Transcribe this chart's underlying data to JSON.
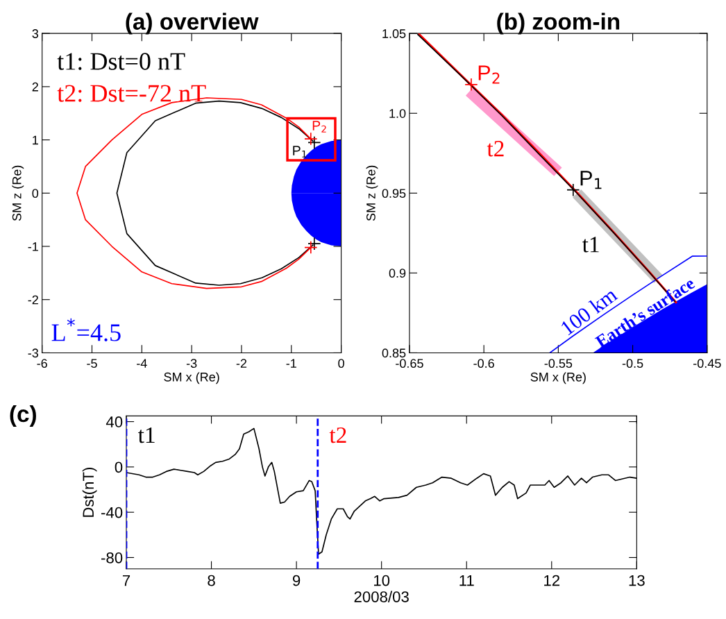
{
  "chart_data": [
    {
      "type": "line",
      "title": "(a) overview",
      "xlabel": "SM x (Re)",
      "ylabel": "SM z (Re)",
      "xlim": [
        -6,
        0
      ],
      "ylim": [
        -3,
        3
      ],
      "xticks": [
        -6,
        -5,
        -4,
        -3,
        -2,
        -1,
        0
      ],
      "yticks": [
        -3,
        -2,
        -1,
        0,
        1,
        2,
        3
      ],
      "grid": false,
      "legend": false,
      "annotations": [
        "t1: Dst=0 nT",
        "t2: Dst=-72 nT",
        {
          "text": "P$_{1}$",
          "x": -0.54,
          "y": 0.95
        },
        {
          "text": "P$_{2}$",
          "x": -0.61,
          "y": 1.02
        },
        "L$^{*}$=4.5"
      ],
      "series": [
        {
          "type": "area",
          "color": "#0000ff",
          "x": [
            -1,
            -0.99,
            -0.95,
            -0.9,
            -0.8,
            -0.7,
            -0.6,
            -0.5,
            -0.4,
            -0.3,
            -0.2,
            -0.1,
            0
          ],
          "values": [
            0,
            0.14,
            0.31,
            0.44,
            0.6,
            0.71,
            0.8,
            0.87,
            0.92,
            0.95,
            0.98,
            0.99,
            1
          ]
        },
        {
          "type": "area",
          "color": "#0000ff",
          "x": [
            -1,
            -0.99,
            -0.95,
            -0.9,
            -0.8,
            -0.7,
            -0.6,
            -0.5,
            -0.4,
            -0.3,
            -0.2,
            -0.1,
            0
          ],
          "values": [
            0,
            -0.14,
            -0.31,
            -0.44,
            -0.6,
            -0.71,
            -0.8,
            -0.87,
            -0.92,
            -0.95,
            -0.98,
            -0.99,
            -1
          ]
        },
        {
          "color": "#000000",
          "x": [
            -0.56,
            -0.85,
            -1.2,
            -1.59,
            -2.02,
            -2.45,
            -2.92,
            -3.73,
            -4.3,
            -4.5,
            -4.3,
            -3.73,
            -2.92,
            -2.45,
            -2.02,
            -1.59,
            -1.2,
            -0.85,
            -0.56
          ],
          "values": [
            0.97,
            1.21,
            1.42,
            1.59,
            1.7,
            1.73,
            1.69,
            1.36,
            0.76,
            0,
            -0.76,
            -1.36,
            -1.69,
            -1.73,
            -1.7,
            -1.59,
            -1.42,
            -1.21,
            -0.97
          ]
        },
        {
          "color": "#ff0000",
          "x": [
            -0.61,
            -0.85,
            -1.1,
            -1.6,
            -2.0,
            -2.7,
            -3.4,
            -4.0,
            -4.6,
            -5.13,
            -5.3,
            -5.13,
            -4.6,
            -4.0,
            -3.4,
            -2.7,
            -2.0,
            -1.6,
            -1.1,
            -0.85,
            -0.61
          ],
          "values": [
            1.02,
            1.24,
            1.41,
            1.66,
            1.76,
            1.79,
            1.7,
            1.48,
            1.0,
            0.5,
            0,
            -0.5,
            -1.0,
            -1.48,
            -1.7,
            -1.79,
            -1.76,
            -1.66,
            -1.41,
            -1.24,
            -1.02
          ]
        },
        {
          "type": "scatter",
          "marker": "cross",
          "color": "#000000",
          "x": [
            -0.54,
            -0.54
          ],
          "values": [
            0.95,
            -0.95
          ]
        },
        {
          "type": "scatter",
          "marker": "cross",
          "color": "#ff0000",
          "x": [
            -0.61,
            -0.61
          ],
          "values": [
            1.02,
            -1.02
          ]
        }
      ]
    },
    {
      "type": "line",
      "title": "(b) zoom-in",
      "xlabel": "SM x (Re)",
      "ylabel": "SM z (Re)",
      "xlim": [
        -0.65,
        -0.45
      ],
      "ylim": [
        0.85,
        1.05
      ],
      "xticks": [
        -0.65,
        -0.6,
        -0.55,
        -0.5,
        -0.45
      ],
      "yticks": [
        0.85,
        0.9,
        0.95,
        {
          "value": 1.0,
          "label": "1.0"
        },
        1.05
      ],
      "grid": false,
      "legend": false,
      "annotations": [
        {
          "text": "P$_{2}$",
          "x": -0.6085,
          "y": 1.018
        },
        {
          "text": "P$_{1}$",
          "x": -0.54,
          "y": 0.952
        },
        "t2",
        "t1",
        "100 km",
        "Earth’s surface"
      ],
      "series": [
        {
          "color": "#ff99cc",
          "x": [
            -0.6096,
            -0.5502
          ],
          "values": [
            1.0138,
            0.9633
          ]
        },
        {
          "color": "#c0c0c0",
          "x": [
            -0.5375,
            -0.4828
          ],
          "values": [
            0.9498,
            0.8963
          ]
        },
        {
          "type": "area",
          "color": "#0000ff",
          "x": [
            -0.5268,
            -0.52,
            -0.51,
            -0.5,
            -0.49,
            -0.48,
            -0.47,
            -0.46,
            -0.45
          ],
          "values": [
            0.85,
            0.8542,
            0.8602,
            0.866,
            0.8717,
            0.8773,
            0.8827,
            0.8879,
            0.893
          ]
        },
        {
          "color": "#0000ff",
          "x": [
            -0.5557,
            -0.54,
            -0.52,
            -0.5,
            -0.48,
            -0.46,
            -0.45
          ],
          "values": [
            0.85,
            0.8606,
            0.8736,
            0.8862,
            0.8985,
            0.9105,
            0.9106
          ]
        },
        {
          "color": "#ff0000",
          "x": [
            -0.6441,
            -0.615,
            -0.5882,
            -0.5625,
            -0.5373,
            -0.5128,
            -0.489,
            -0.4705
          ],
          "values": [
            1.05,
            1.0235,
            0.9993,
            0.9748,
            0.9502,
            0.9255,
            0.9008,
            0.8812
          ]
        },
        {
          "color": "#000000",
          "x": [
            -0.6447,
            -0.615,
            -0.5882,
            -0.5625,
            -0.5373,
            -0.5128,
            -0.489,
            -0.4714
          ],
          "values": [
            1.0496,
            1.0232,
            0.9988,
            0.974,
            0.9498,
            0.9252,
            0.9006,
            0.8819
          ]
        },
        {
          "type": "scatter",
          "marker": "cross",
          "color": "#ff0000",
          "x": [
            -0.6085
          ],
          "values": [
            1.018
          ]
        },
        {
          "type": "scatter",
          "marker": "cross",
          "color": "#000000",
          "x": [
            -0.54
          ],
          "values": [
            0.952
          ]
        }
      ]
    },
    {
      "type": "line",
      "title": "(c)",
      "xlabel": "2008/03",
      "ylabel": "Dst(nT)",
      "xlim": [
        7,
        13
      ],
      "ylim": [
        -90,
        45
      ],
      "xticks": [
        7,
        8,
        9,
        10,
        11,
        12,
        13
      ],
      "yticks": [
        -80,
        -40,
        0,
        40
      ],
      "grid": false,
      "legend": false,
      "ref_lines": [
        {
          "axis": "x",
          "value": 7,
          "label": "t1",
          "color": "#0000ff",
          "line_style": "dashed"
        },
        {
          "axis": "x",
          "value": 9.25,
          "label": "t2",
          "color": "#0000ff",
          "line_style": "dashed"
        }
      ],
      "series": [
        {
          "color": "#000000",
          "x": [
            7.0,
            7.15,
            7.23,
            7.31,
            7.39,
            7.47,
            7.56,
            7.64,
            7.72,
            7.8,
            7.84,
            7.91,
            7.99,
            8.05,
            8.13,
            8.21,
            8.28,
            8.33,
            8.38,
            8.44,
            8.5,
            8.56,
            8.6,
            8.63,
            8.67,
            8.71,
            8.74,
            8.81,
            8.86,
            8.92,
            9.0,
            9.08,
            9.15,
            9.18,
            9.22,
            9.24,
            9.26,
            9.3,
            9.35,
            9.41,
            9.48,
            9.55,
            9.6,
            9.63,
            9.68,
            9.81,
            9.87,
            9.92,
            9.98,
            10.03,
            10.2,
            10.3,
            10.41,
            10.52,
            10.6,
            10.71,
            10.82,
            10.93,
            11.01,
            11.12,
            11.2,
            11.28,
            11.34,
            11.42,
            11.5,
            11.56,
            11.6,
            11.7,
            11.75,
            11.84,
            11.92,
            11.97,
            12.03,
            12.11,
            12.19,
            12.27,
            12.35,
            12.41,
            12.48,
            12.59,
            12.67,
            12.75,
            12.86,
            12.92,
            13.0
          ],
          "values": [
            -5,
            -7,
            -9,
            -9,
            -7,
            -4,
            -2,
            -3,
            -4,
            -5,
            -7,
            -4,
            1,
            4,
            5,
            7,
            11,
            16,
            29,
            31,
            34,
            16,
            0,
            -8,
            0,
            4,
            -4,
            -32,
            -31,
            -26,
            -22,
            -21,
            -12,
            -13,
            -21,
            -50,
            -77,
            -75,
            -60,
            -46,
            -37,
            -37,
            -44,
            -46,
            -39,
            -30,
            -28,
            -26,
            -30,
            -28,
            -27,
            -25,
            -18,
            -16,
            -14,
            -9,
            -10,
            -14,
            -16,
            -10,
            -6,
            -8,
            -25,
            -18,
            -13,
            -16,
            -28,
            -23,
            -16,
            -16,
            -16,
            -12,
            -18,
            -14,
            -8,
            -16,
            -10,
            -14,
            -9,
            -7,
            -7,
            -12,
            -10,
            -9,
            -10
          ]
        }
      ]
    }
  ]
}
